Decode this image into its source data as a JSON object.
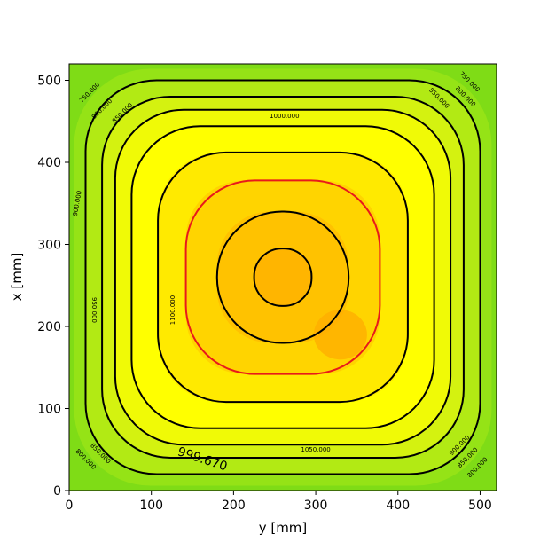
{
  "chart_data": {
    "type": "contour",
    "title": "",
    "xlabel": "y [mm]",
    "ylabel": "x [mm]",
    "xlim": [
      0,
      520
    ],
    "ylim": [
      0,
      520
    ],
    "x_ticks": [
      "0",
      "100",
      "200",
      "300",
      "400",
      "500"
    ],
    "y_ticks": [
      "0",
      "100",
      "200",
      "300",
      "400",
      "500"
    ],
    "grid": false,
    "colormap": [
      "#7fdc16",
      "#c8ee16",
      "#ffff00",
      "#ffd200",
      "#ffb000"
    ],
    "highlight_color": "#e8191b",
    "contour_levels": [
      {
        "level": 750,
        "label": "750.000",
        "color": "#000000",
        "inset": 20,
        "corner_factor": 0
      },
      {
        "level": 800,
        "label": "800.000",
        "color": "#000000",
        "inset": 40,
        "corner_factor": 0.2
      },
      {
        "level": 850,
        "label": "850.000",
        "color": "#000000",
        "inset": 56,
        "corner_factor": 0.35
      },
      {
        "level": 900,
        "label": "900.000",
        "color": "#000000",
        "inset": 76,
        "corner_factor": 0.45
      },
      {
        "level": 950,
        "label": "950.000",
        "color": "#000000",
        "inset": 108,
        "corner_factor": 0.52
      },
      {
        "level": 999.67,
        "label": "999.670",
        "color": "#e8191b",
        "inset": 142,
        "corner_factor": 0.58
      },
      {
        "level": 1000,
        "label": "1000.000",
        "color": "#e8191b",
        "inset": 142,
        "corner_factor": 0.58
      },
      {
        "level": 1050,
        "label": "1050.000",
        "color": "#000000",
        "inset": 180,
        "corner_factor": 0.62
      },
      {
        "level": 1100,
        "label": "1100.000",
        "color": "#000000",
        "inset": 225,
        "corner_factor": 0.66
      }
    ],
    "contour_labels": [
      {
        "text": "750.000",
        "x": 25,
        "y": 485,
        "rotate": -45
      },
      {
        "text": "800.000",
        "x": 40,
        "y": 465,
        "rotate": -45
      },
      {
        "text": "850.000",
        "x": 65,
        "y": 460,
        "rotate": -45
      },
      {
        "text": "1000.000",
        "x": 262,
        "y": 456,
        "rotate": 0
      },
      {
        "text": "750.000",
        "x": 487,
        "y": 498,
        "rotate": 45
      },
      {
        "text": "800.000",
        "x": 482,
        "y": 480,
        "rotate": 45
      },
      {
        "text": "850.000",
        "x": 450,
        "y": 478,
        "rotate": 45
      },
      {
        "text": "900.000",
        "x": 10,
        "y": 350,
        "rotate": -80
      },
      {
        "text": "950.000",
        "x": 30,
        "y": 220,
        "rotate": 90
      },
      {
        "text": "1100.000",
        "x": 126,
        "y": 220,
        "rotate": -90
      },
      {
        "text": "800.000",
        "x": 20,
        "y": 38,
        "rotate": 45
      },
      {
        "text": "850.000",
        "x": 38,
        "y": 45,
        "rotate": 45
      },
      {
        "text": "1050.000",
        "x": 300,
        "y": 50,
        "rotate": 0
      },
      {
        "text": "900.000",
        "x": 475,
        "y": 55,
        "rotate": -45
      },
      {
        "text": "850.000",
        "x": 485,
        "y": 40,
        "rotate": -45
      },
      {
        "text": "800.000",
        "x": 497,
        "y": 28,
        "rotate": -45
      }
    ],
    "big_label": {
      "text": "999.670",
      "x": 162,
      "y": 38,
      "rotate": 18
    }
  }
}
